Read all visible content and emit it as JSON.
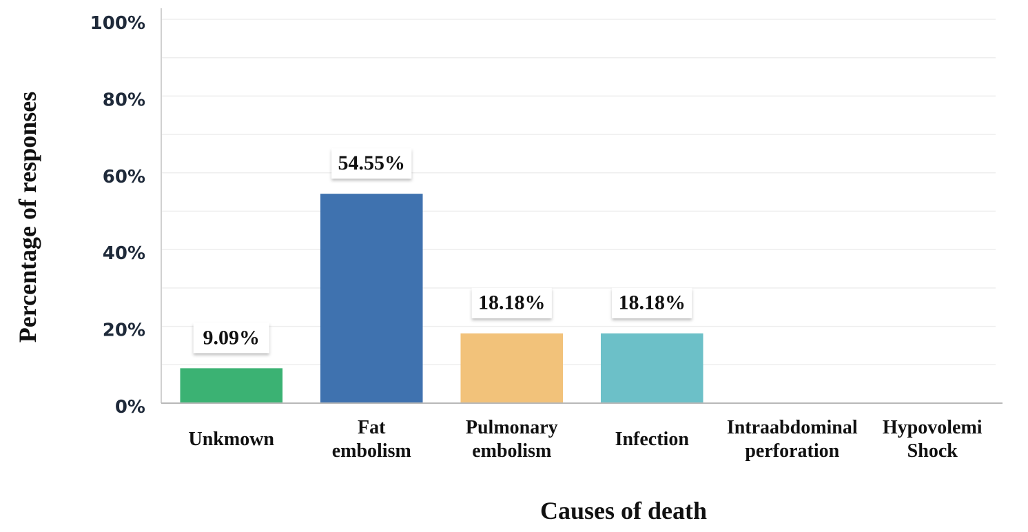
{
  "chart_data": {
    "type": "bar",
    "xlabel": "Causes of death",
    "ylabel": "Percentage of responses",
    "ylim": [
      0,
      100
    ],
    "y_ticks": [
      "0%",
      "20%",
      "40%",
      "60%",
      "80%",
      "100%"
    ],
    "categories": [
      [
        "Unkmown"
      ],
      [
        "Fat",
        "embolism"
      ],
      [
        "Pulmonary",
        "embolism"
      ],
      [
        "Infection"
      ],
      [
        "Intraabdominal",
        "perforation"
      ],
      [
        "Hypovolemi",
        "Shock"
      ]
    ],
    "values": [
      9.09,
      54.55,
      18.18,
      18.18,
      0,
      0
    ],
    "data_labels": [
      "9.09%",
      "54.55%",
      "18.18%",
      "18.18%",
      "",
      ""
    ],
    "colors": [
      "#3bb273",
      "#3f72af",
      "#f2c27a",
      "#6cc0c8",
      "#cccccc",
      "#cccccc"
    ],
    "grid": true,
    "legend": "none"
  }
}
